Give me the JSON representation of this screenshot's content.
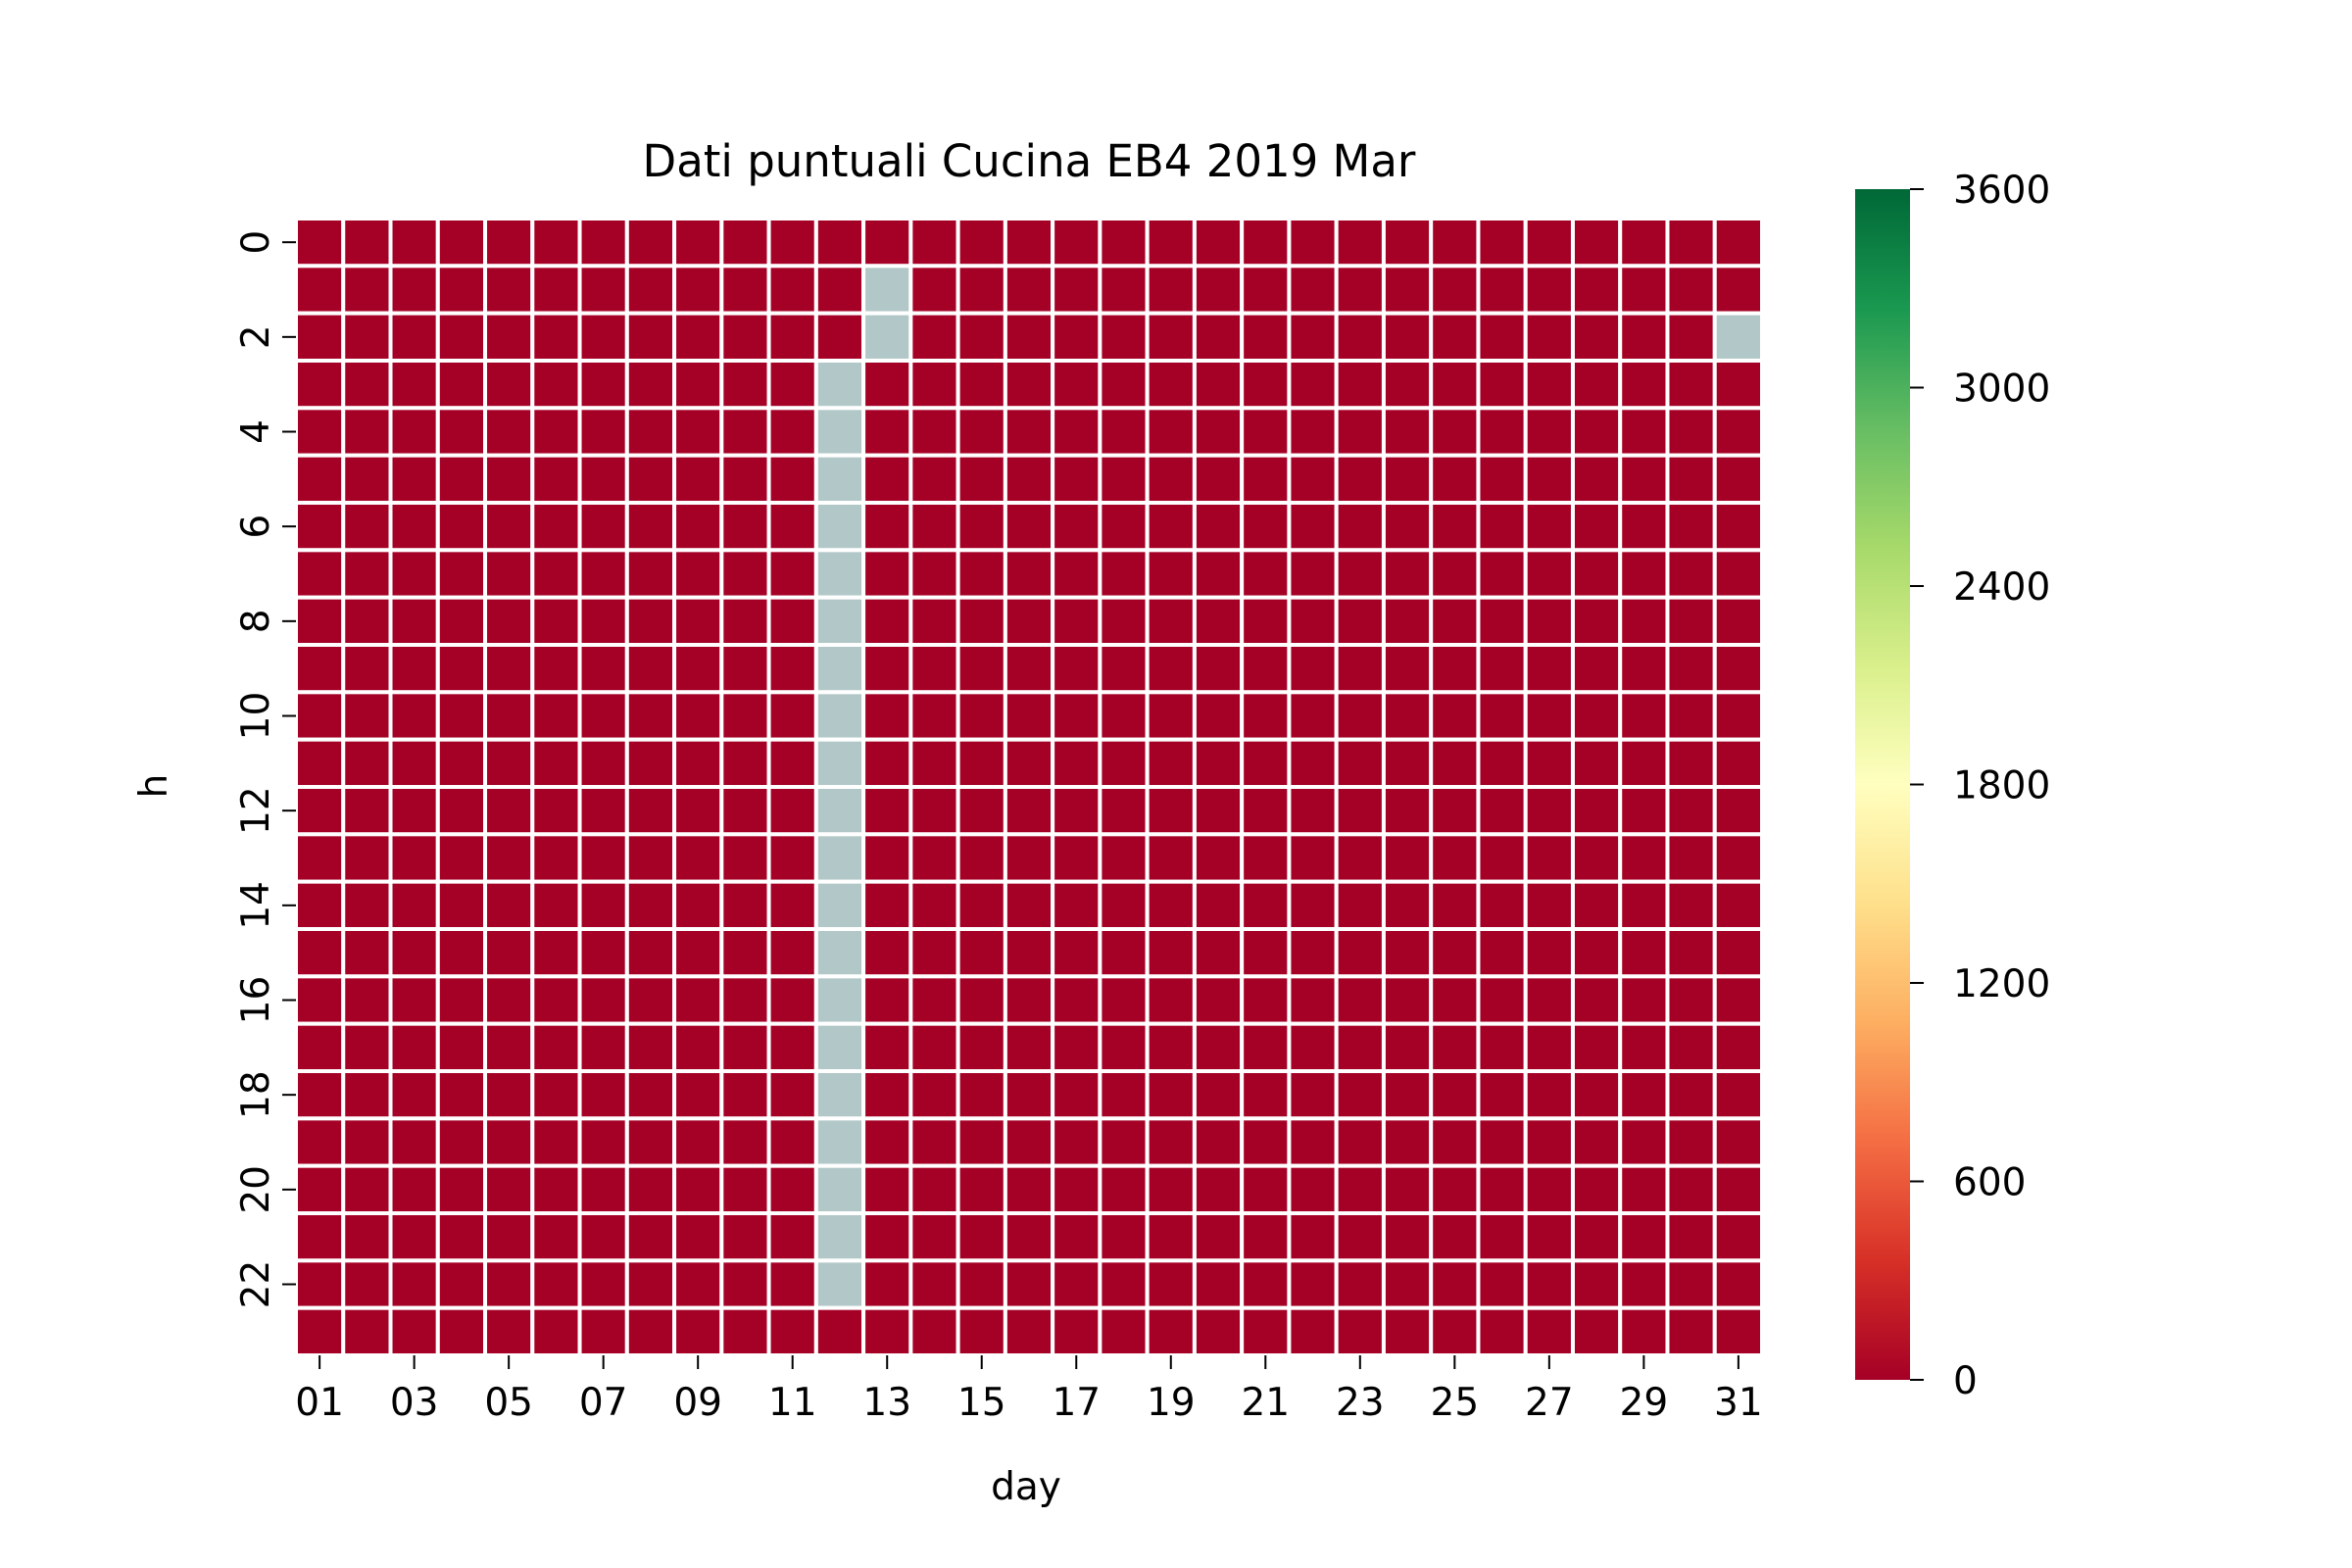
{
  "chart_data": {
    "type": "heatmap",
    "title": "Dati puntuali Cucina EB4 2019 Mar",
    "xlabel": "day",
    "ylabel": "h",
    "days": [
      "01",
      "02",
      "03",
      "04",
      "05",
      "06",
      "07",
      "08",
      "09",
      "10",
      "11",
      "12",
      "13",
      "14",
      "15",
      "16",
      "17",
      "18",
      "19",
      "20",
      "21",
      "22",
      "23",
      "24",
      "25",
      "26",
      "27",
      "28",
      "29",
      "30",
      "31"
    ],
    "hours": [
      0,
      1,
      2,
      3,
      4,
      5,
      6,
      7,
      8,
      9,
      10,
      11,
      12,
      13,
      14,
      15,
      16,
      17,
      18,
      19,
      20,
      21,
      22,
      23
    ],
    "x_tick_labels": [
      "01",
      "03",
      "05",
      "07",
      "09",
      "11",
      "13",
      "15",
      "17",
      "19",
      "21",
      "23",
      "25",
      "27",
      "29",
      "31"
    ],
    "y_tick_labels": [
      "0",
      "2",
      "4",
      "6",
      "8",
      "10",
      "12",
      "14",
      "16",
      "18",
      "20",
      "22"
    ],
    "fill_value": 0,
    "missing_cells": [
      {
        "day": "13",
        "h": 1
      },
      {
        "day": "13",
        "h": 2
      },
      {
        "day": "31",
        "h": 2
      },
      {
        "day": "12",
        "h": 3
      },
      {
        "day": "12",
        "h": 4
      },
      {
        "day": "12",
        "h": 5
      },
      {
        "day": "12",
        "h": 6
      },
      {
        "day": "12",
        "h": 7
      },
      {
        "day": "12",
        "h": 8
      },
      {
        "day": "12",
        "h": 9
      },
      {
        "day": "12",
        "h": 10
      },
      {
        "day": "12",
        "h": 11
      },
      {
        "day": "12",
        "h": 12
      },
      {
        "day": "12",
        "h": 13
      },
      {
        "day": "12",
        "h": 14
      },
      {
        "day": "12",
        "h": 15
      },
      {
        "day": "12",
        "h": 16
      },
      {
        "day": "12",
        "h": 17
      },
      {
        "day": "12",
        "h": 18
      },
      {
        "day": "12",
        "h": 19
      },
      {
        "day": "12",
        "h": 20
      },
      {
        "day": "12",
        "h": 21
      },
      {
        "day": "12",
        "h": 22
      }
    ],
    "missing_color": "#b2c8c8",
    "grid_line_color": "#ffffff",
    "colorbar": {
      "vmin": 0,
      "vmax": 3600,
      "ticks": [
        "0",
        "600",
        "1200",
        "1800",
        "2400",
        "3000",
        "3600"
      ],
      "colormap": "RdYlGn",
      "stops": [
        "#a50026",
        "#d73027",
        "#f46d43",
        "#fdae61",
        "#fee08b",
        "#ffffbf",
        "#d9ef8b",
        "#a6d96a",
        "#66bd63",
        "#1a9850",
        "#006837"
      ]
    }
  }
}
